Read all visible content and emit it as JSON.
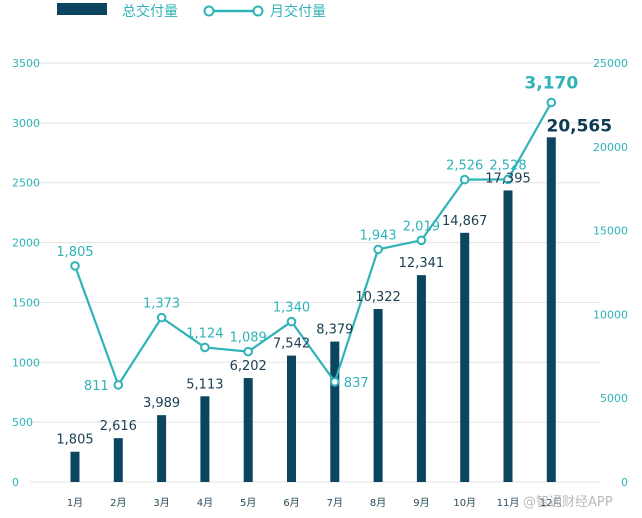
{
  "chart_data": {
    "type": "bar+line",
    "categories": [
      "1月",
      "2月",
      "3月",
      "4月",
      "5月",
      "6月",
      "7月",
      "8月",
      "9月",
      "10月",
      "11月",
      "12月"
    ],
    "series": [
      {
        "name": "总交付量",
        "type": "bar",
        "axis": "right",
        "values": [
          1805,
          2616,
          3989,
          5113,
          6202,
          7542,
          8379,
          10322,
          12341,
          14867,
          17395,
          20565
        ],
        "labels": [
          "1,805",
          "2,616",
          "3,989",
          "5,113",
          "6,202",
          "7,542",
          "8,379",
          "10,322",
          "12,341",
          "14,867",
          "17,395",
          "20,565"
        ]
      },
      {
        "name": "月交付量",
        "type": "line",
        "axis": "left",
        "values": [
          1805,
          811,
          1373,
          1124,
          1089,
          1340,
          837,
          1943,
          2019,
          2526,
          2528,
          3170
        ],
        "labels": [
          "1,805",
          "811",
          "1,373",
          "1,124",
          "1,089",
          "1,340",
          "837",
          "1,943",
          "2,019",
          "2,526",
          "2,528",
          "3,170"
        ]
      }
    ],
    "y_left": {
      "ticks": [
        "0",
        "500",
        "1000",
        "1500",
        "2000",
        "2500",
        "3000",
        "3500"
      ],
      "range": [
        0,
        3500
      ]
    },
    "y_right": {
      "ticks": [
        "0",
        "5000",
        "10000",
        "15000",
        "20000",
        "25000"
      ],
      "range": [
        0,
        25000
      ]
    },
    "grid": true,
    "legend_position": "top-left"
  },
  "colors": {
    "bar": "#0c4560",
    "line": "#2fb3b8",
    "grid": "#e3e3e3"
  },
  "watermark": "@智通财经APP"
}
